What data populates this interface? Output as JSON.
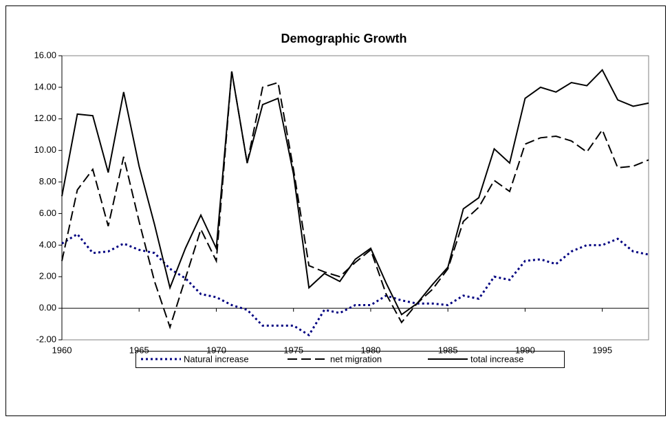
{
  "chart_data": {
    "type": "line",
    "title": "Demographic Growth",
    "x": [
      1960,
      1961,
      1962,
      1963,
      1964,
      1965,
      1966,
      1967,
      1968,
      1969,
      1970,
      1971,
      1972,
      1973,
      1974,
      1975,
      1976,
      1977,
      1978,
      1979,
      1980,
      1981,
      1982,
      1983,
      1984,
      1985,
      1986,
      1987,
      1988,
      1989,
      1990,
      1991,
      1992,
      1993,
      1994,
      1995,
      1996,
      1997,
      1998
    ],
    "xlim": [
      1960,
      1998
    ],
    "xticks": [
      1960,
      1965,
      1970,
      1975,
      1980,
      1985,
      1990,
      1995
    ],
    "ylim": [
      -2,
      16
    ],
    "yticks": [
      {
        "value": -2,
        "label": "-2.00"
      },
      {
        "value": 0,
        "label": "0.00"
      },
      {
        "value": 2,
        "label": "2.00"
      },
      {
        "value": 4,
        "label": "4.00"
      },
      {
        "value": 6,
        "label": "6.00"
      },
      {
        "value": 8,
        "label": "8.00"
      },
      {
        "value": 10,
        "label": "10.00"
      },
      {
        "value": 12,
        "label": "12.00"
      },
      {
        "value": 14,
        "label": "14.00"
      },
      {
        "value": 16,
        "label": "16.00"
      }
    ],
    "grid": false,
    "legend": "bottom",
    "series": [
      {
        "name": "Natural increase",
        "color": "#000080",
        "dash": "dotted",
        "values": [
          4.1,
          4.7,
          3.5,
          3.6,
          4.1,
          3.7,
          3.5,
          2.5,
          1.9,
          0.9,
          0.7,
          0.2,
          -0.1,
          -1.1,
          -1.1,
          -1.1,
          -1.7,
          -0.1,
          -0.3,
          0.2,
          0.2,
          0.8,
          0.5,
          0.3,
          0.3,
          0.2,
          0.8,
          0.6,
          2.0,
          1.8,
          3.0,
          3.1,
          2.8,
          3.6,
          4.0,
          4.0,
          4.4,
          3.6,
          3.4
        ]
      },
      {
        "name": "net migration",
        "color": "#000000",
        "dash": "dashed",
        "values": [
          3.0,
          7.5,
          8.8,
          5.2,
          9.6,
          5.5,
          1.7,
          -1.2,
          1.9,
          5.0,
          3.0,
          15.0,
          9.2,
          14.0,
          14.3,
          8.8,
          2.7,
          2.3,
          2.0,
          2.9,
          3.7,
          0.9,
          -0.9,
          0.3,
          1.2,
          2.5,
          5.5,
          6.4,
          8.1,
          7.4,
          10.4,
          10.8,
          10.9,
          10.6,
          9.9,
          11.3,
          8.9,
          9.0,
          9.4
        ]
      },
      {
        "name": "total increase",
        "color": "#000000",
        "dash": "solid",
        "values": [
          7.1,
          12.3,
          12.2,
          8.6,
          13.7,
          9.0,
          5.3,
          1.3,
          3.8,
          5.9,
          3.8,
          15.0,
          9.2,
          12.9,
          13.3,
          8.5,
          1.3,
          2.2,
          1.7,
          3.1,
          3.8,
          1.6,
          -0.4,
          0.3,
          1.5,
          2.6,
          6.3,
          7.0,
          10.1,
          9.2,
          13.3,
          14.0,
          13.7,
          14.3,
          14.1,
          15.1,
          13.2,
          12.8,
          13.0
        ]
      }
    ]
  }
}
